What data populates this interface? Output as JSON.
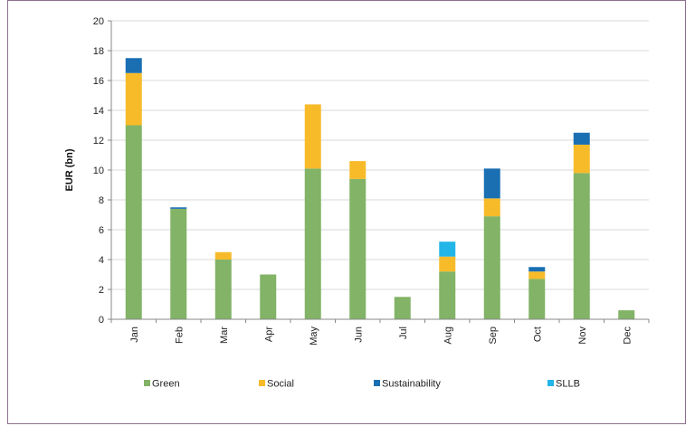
{
  "chart_data": {
    "type": "bar",
    "stacked": true,
    "title": "",
    "xlabel": "",
    "ylabel": "EUR (bn)",
    "ylim": [
      0,
      20
    ],
    "yticks": [
      0,
      2,
      4,
      6,
      8,
      10,
      12,
      14,
      16,
      18,
      20
    ],
    "grid": true,
    "legend_position": "bottom",
    "categories": [
      "Jan",
      "Feb",
      "Mar",
      "Apr",
      "May",
      "Jun",
      "Jul",
      "Aug",
      "Sep",
      "Oct",
      "Nov",
      "Dec"
    ],
    "series": [
      {
        "name": "Green",
        "color": "#82b366",
        "values": [
          13.0,
          7.4,
          4.0,
          3.0,
          10.1,
          9.4,
          1.5,
          3.2,
          6.9,
          2.7,
          9.8,
          0.6
        ]
      },
      {
        "name": "Social",
        "color": "#f7bb2a",
        "values": [
          3.5,
          0.0,
          0.5,
          0.0,
          4.3,
          1.2,
          0.0,
          1.0,
          1.2,
          0.5,
          1.9,
          0.0
        ]
      },
      {
        "name": "Sustainability",
        "color": "#1a6fb3",
        "values": [
          1.0,
          0.1,
          0.0,
          0.0,
          0.0,
          0.0,
          0.0,
          0.0,
          2.0,
          0.3,
          0.8,
          0.0
        ]
      },
      {
        "name": "SLLB",
        "color": "#22b5e8",
        "values": [
          0.0,
          0.0,
          0.0,
          0.0,
          0.0,
          0.0,
          0.0,
          1.0,
          0.0,
          0.0,
          0.0,
          0.0
        ]
      }
    ]
  }
}
